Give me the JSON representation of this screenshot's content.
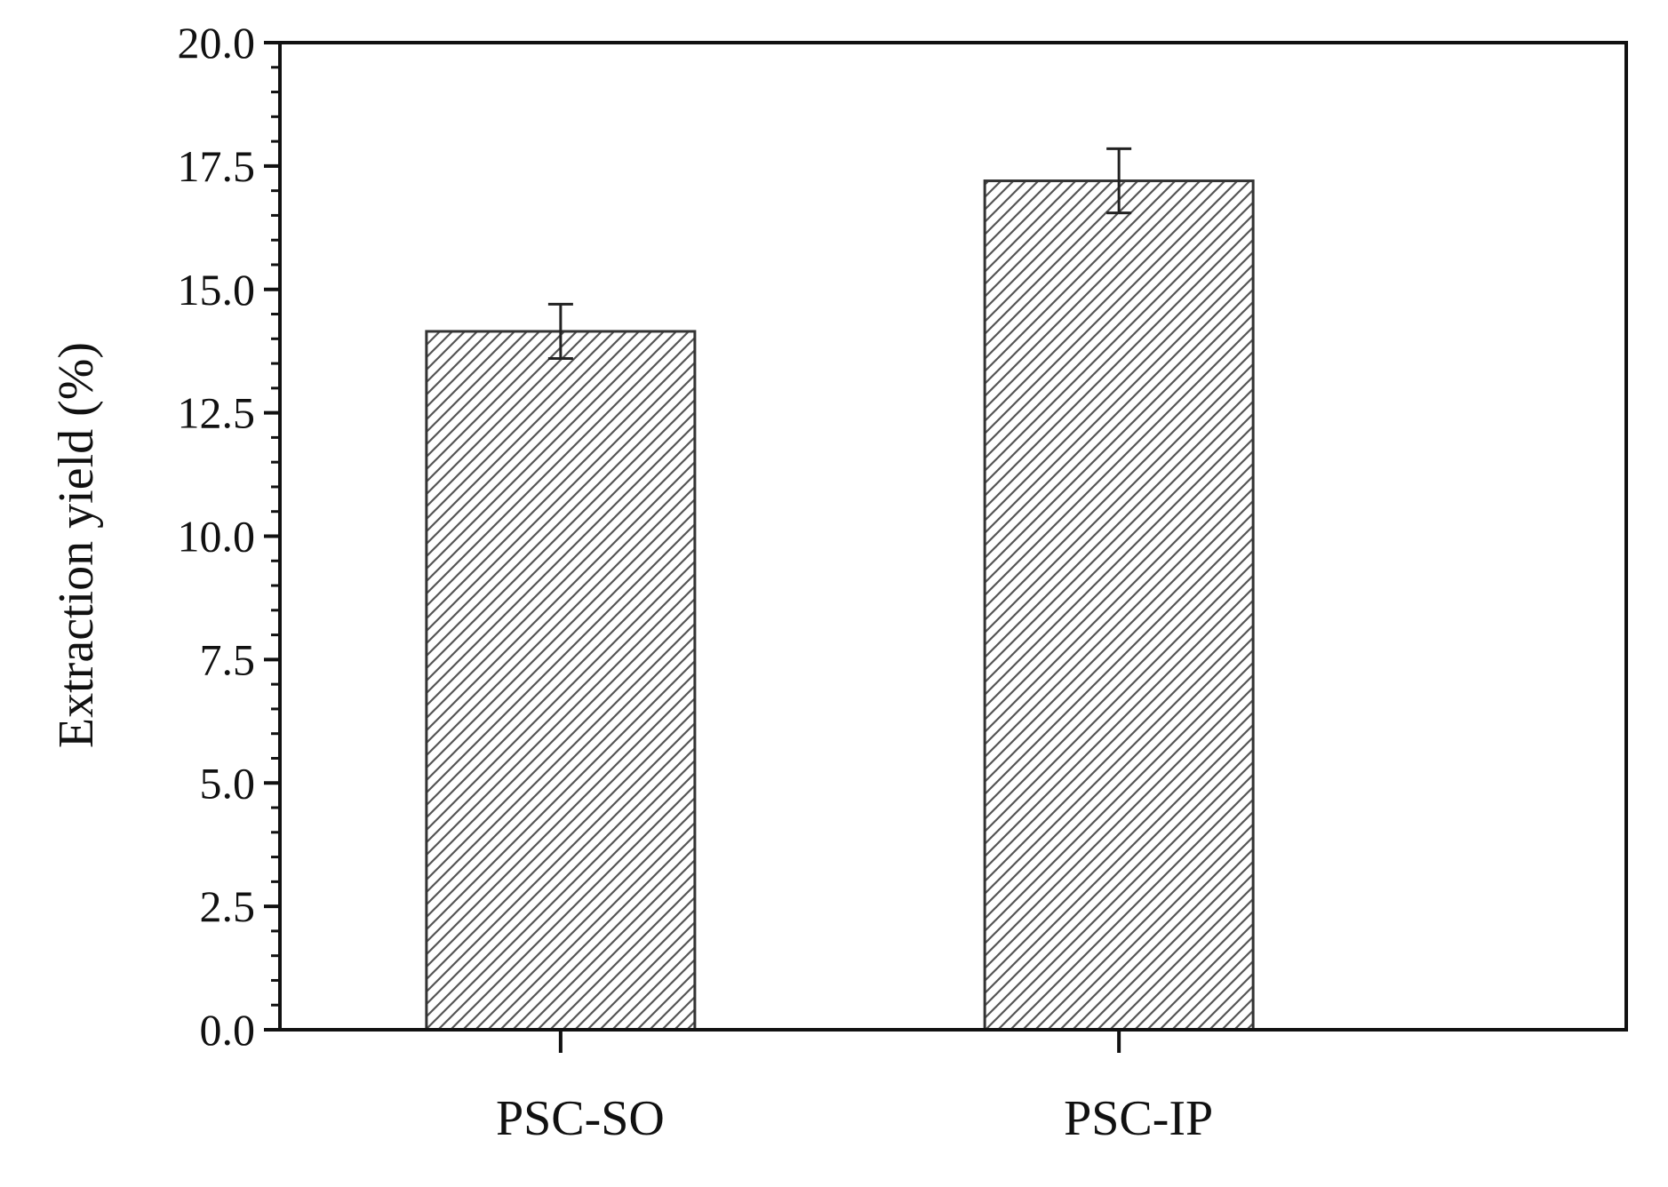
{
  "chart_data": {
    "type": "bar",
    "title": "",
    "xlabel": "",
    "ylabel": "Extraction yield (%)",
    "categories": [
      "PSC-SO",
      "PSC-IP"
    ],
    "values": [
      14.15,
      17.2
    ],
    "errors": [
      0.55,
      0.65
    ],
    "ylim": [
      0,
      20
    ],
    "yticks": [
      0,
      2.5,
      5,
      7.5,
      10,
      12.5,
      15,
      17.5,
      20
    ],
    "ytick_labels": [
      "0.0",
      "2.5",
      "5.0",
      "7.5",
      "10.0",
      "12.5",
      "15.0",
      "17.5",
      "20.0"
    ],
    "bar_fill": "diagonal-hatch",
    "colors": {
      "axis": "#111111",
      "bar_edge": "#333333",
      "hatch": "#555555",
      "background": "#ffffff"
    },
    "grid": false,
    "legend": "none"
  }
}
